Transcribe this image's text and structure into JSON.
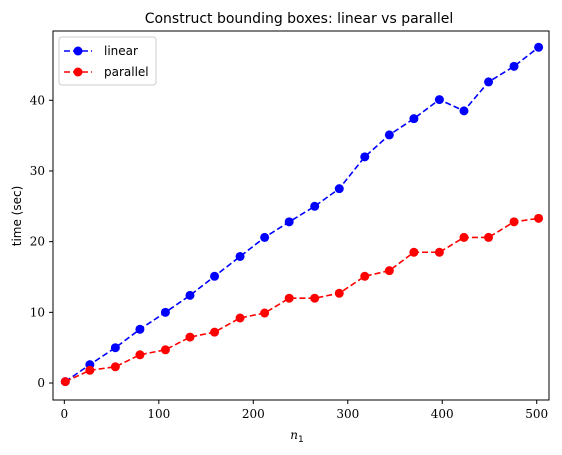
{
  "chart_data": {
    "type": "line",
    "title": "Construct bounding boxes: linear vs parallel",
    "xlabel": "n",
    "xlabel_subscript": "1",
    "ylabel": "time (sec)",
    "xlim": [
      -12,
      513
    ],
    "ylim": [
      -2.4,
      49.8
    ],
    "xticks": [
      0,
      100,
      200,
      300,
      400,
      500
    ],
    "yticks": [
      0,
      10,
      20,
      30,
      40
    ],
    "grid": false,
    "legend_position": "top-left",
    "x": [
      1,
      27,
      54,
      80,
      107,
      133,
      159,
      186,
      212,
      238,
      265,
      291,
      318,
      344,
      370,
      397,
      423,
      449,
      476,
      502
    ],
    "series": [
      {
        "name": "linear",
        "color": "#0000ff",
        "values": [
          0.2,
          2.6,
          5.0,
          7.6,
          10.0,
          12.4,
          15.1,
          17.9,
          20.6,
          22.8,
          25.0,
          27.5,
          32.0,
          35.1,
          37.4,
          40.1,
          38.5,
          42.6,
          44.8,
          47.5
        ]
      },
      {
        "name": "parallel",
        "color": "#ff0000",
        "values": [
          0.2,
          1.8,
          2.3,
          4.0,
          4.7,
          6.5,
          7.2,
          9.2,
          9.9,
          12.0,
          12.0,
          12.7,
          15.1,
          15.9,
          18.5,
          18.5,
          20.6,
          20.6,
          22.8,
          23.3
        ]
      }
    ]
  }
}
